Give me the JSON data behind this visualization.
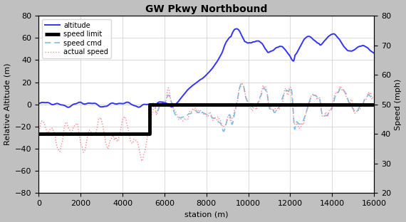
{
  "title": "GW Pkwy Northbound",
  "xlabel": "station (m)",
  "ylabel_left": "Relative Altitude (m)",
  "ylabel_right": "Speed (mph)",
  "xlim": [
    0,
    16000
  ],
  "ylim_left": [
    -80,
    80
  ],
  "ylim_right": [
    20,
    80
  ],
  "yticks_left": [
    -80,
    -60,
    -40,
    -20,
    0,
    20,
    40,
    60,
    80
  ],
  "yticks_right": [
    20,
    30,
    40,
    50,
    60,
    70,
    80
  ],
  "xticks": [
    0,
    2000,
    4000,
    6000,
    8000,
    10000,
    12000,
    14000,
    16000
  ],
  "speed_limit_change": 5300,
  "speed_limit_v1": 40,
  "speed_limit_v2": 50,
  "bg_color": "#c0c0c0",
  "plot_bg_color": "#ffffff",
  "altitude_color": "#3333ff",
  "speed_limit_color": "#000000",
  "speed_cmd_color": "#7bbfea",
  "actual_speed_color": "#ff8888",
  "legend_labels": [
    "altitude",
    "speed limit",
    "speed cmd",
    "actual speed"
  ],
  "grid_color": "#cccccc",
  "title_fontsize": 10,
  "axis_fontsize": 8,
  "tick_fontsize": 8,
  "legend_fontsize": 7
}
